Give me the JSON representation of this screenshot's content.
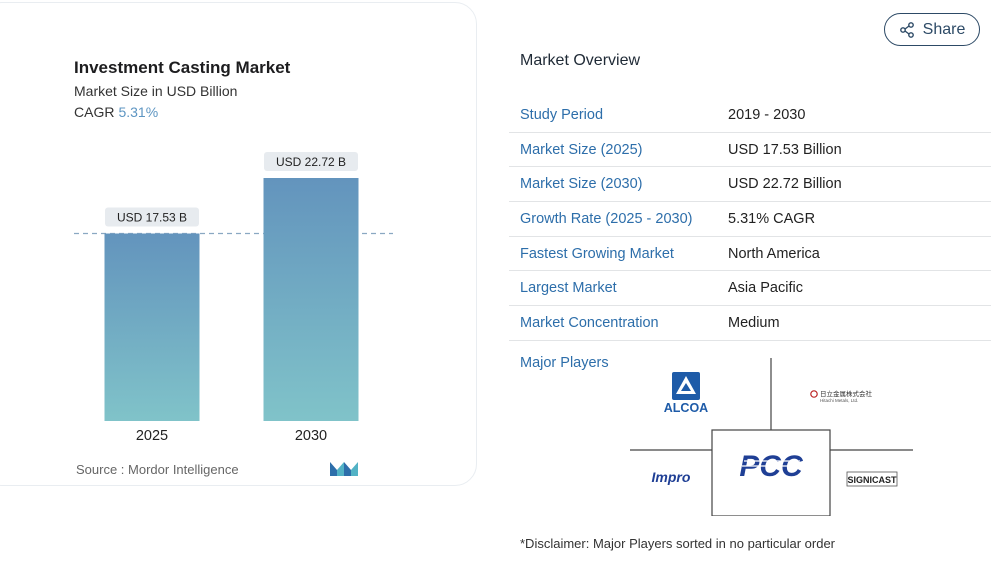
{
  "chart": {
    "title": "Investment Casting Market",
    "subtitle": "Market Size in USD Billion",
    "cagr_label": "CAGR",
    "cagr_value": "5.31%",
    "source": "Source :  Mordor Intelligence"
  },
  "chart_data": {
    "type": "bar",
    "categories": [
      "2025",
      "2030"
    ],
    "values": [
      17.53,
      22.72
    ],
    "data_labels": [
      "USD 17.53 B",
      "USD 22.72 B"
    ],
    "title": "Investment Casting Market",
    "subtitle": "Market Size in USD Billion",
    "xlabel": "",
    "ylabel": "",
    "reference_line": 17.53,
    "grid": false,
    "bar_gradient": [
      "#6394bd",
      "#80c3c9"
    ]
  },
  "share": {
    "label": "Share"
  },
  "overview": {
    "title": "Market Overview",
    "rows": [
      {
        "key": "Study Period",
        "value": "2019 - 2030"
      },
      {
        "key": "Market Size (2025)",
        "value": "USD 17.53 Billion"
      },
      {
        "key": "Market Size (2030)",
        "value": "USD 22.72 Billion"
      },
      {
        "key": "Growth Rate (2025 - 2030)",
        "value": "5.31% CAGR"
      },
      {
        "key": "Fastest Growing Market",
        "value": "North America"
      },
      {
        "key": "Largest Market",
        "value": "Asia Pacific"
      },
      {
        "key": "Market Concentration",
        "value": "Medium"
      }
    ]
  },
  "players": {
    "label": "Major Players",
    "logos": {
      "alcoa": "ALCOA",
      "hitachi": "日立金属株式会社",
      "hitachi_sub": "Hitachi Metals, Ltd.",
      "pcc": "PCC",
      "impro": "Impro",
      "signicast": "SIGNICAST"
    }
  },
  "disclaimer": "*Disclaimer: Major Players sorted in no particular order",
  "colors": {
    "accent": "#2d6eaa",
    "bar_top": "#6394bd",
    "bar_bottom": "#80c3c9",
    "pcc_blue": "#1f3f95",
    "alcoa_blue": "#1e5ba8"
  }
}
